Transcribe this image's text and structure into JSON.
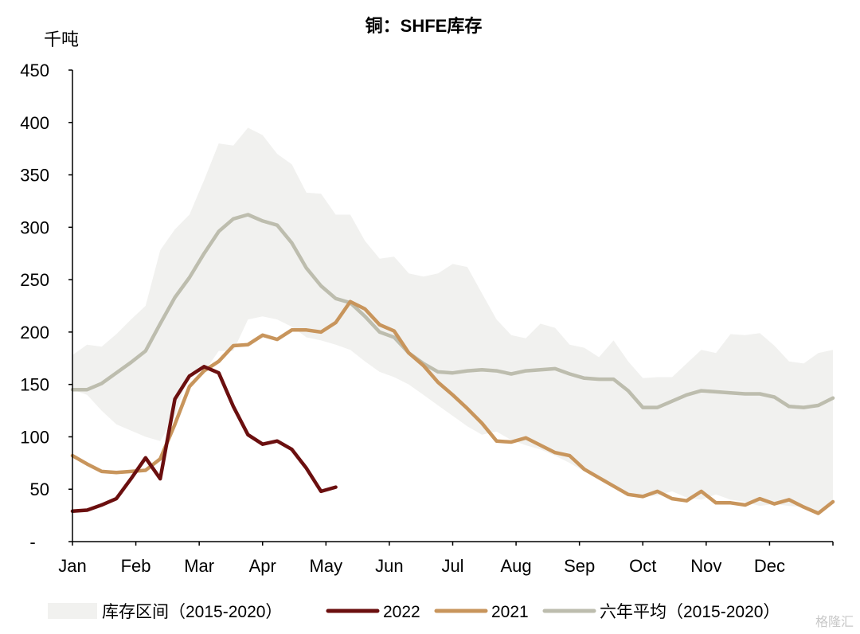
{
  "chart_data": {
    "type": "line",
    "title": "铜：SHFE库存",
    "ylabel": "千吨",
    "xlabel": "",
    "ylim": [
      0,
      450
    ],
    "yticks": [
      0,
      50,
      100,
      150,
      200,
      250,
      300,
      350,
      400,
      450
    ],
    "ytick_labels": [
      "-",
      "50",
      "100",
      "150",
      "200",
      "250",
      "300",
      "350",
      "400",
      "450"
    ],
    "xlim": [
      0,
      52
    ],
    "months": [
      "Jan",
      "Feb",
      "Mar",
      "Apr",
      "May",
      "Jun",
      "Jul",
      "Aug",
      "Sep",
      "Oct",
      "Nov",
      "Dec"
    ],
    "grid": false,
    "legend_position": "bottom",
    "band": {
      "name": "库存区间（2015-2020）",
      "color": "#f1f1ef",
      "x": [
        0,
        1,
        2,
        3,
        4,
        5,
        6,
        7,
        8,
        9,
        10,
        11,
        12,
        13,
        14,
        15,
        16,
        17,
        18,
        19,
        20,
        21,
        22,
        23,
        24,
        25,
        26,
        27,
        28,
        29,
        30,
        31,
        32,
        33,
        34,
        35,
        36,
        37,
        38,
        39,
        40,
        41,
        42,
        43,
        44,
        45,
        46,
        47,
        48,
        49,
        50,
        51,
        52
      ],
      "upper": [
        178,
        188,
        186,
        198,
        212,
        225,
        278,
        298,
        312,
        345,
        380,
        378,
        395,
        388,
        370,
        360,
        333,
        332,
        312,
        312,
        287,
        270,
        272,
        256,
        253,
        256,
        265,
        262,
        237,
        212,
        197,
        194,
        208,
        204,
        188,
        185,
        176,
        192,
        172,
        156,
        157,
        157,
        170,
        183,
        180,
        198,
        197,
        199,
        187,
        172,
        170,
        180,
        183
      ],
      "lower": [
        145,
        140,
        125,
        112,
        106,
        100,
        96,
        120,
        162,
        162,
        182,
        182,
        212,
        215,
        212,
        205,
        195,
        192,
        188,
        183,
        172,
        162,
        157,
        150,
        140,
        130,
        120,
        110,
        102,
        105,
        97,
        92,
        88,
        82,
        75,
        67,
        60,
        53,
        46,
        43,
        44,
        48,
        42,
        40,
        45,
        40,
        38,
        34,
        36,
        34,
        33,
        28,
        36
      ]
    },
    "series": [
      {
        "name": "2022",
        "color": "#6b0f0f",
        "x": [
          0,
          1,
          2,
          3,
          4,
          5,
          6,
          7,
          8,
          9,
          10,
          11,
          12,
          13,
          14,
          15,
          16,
          17,
          18
        ],
        "values": [
          29,
          30,
          35,
          41,
          60,
          80,
          60,
          136,
          158,
          167,
          161,
          129,
          102,
          93,
          96,
          88,
          70,
          48,
          52
        ]
      },
      {
        "name": "2021",
        "color": "#c8955c",
        "x": [
          0,
          1,
          2,
          3,
          4,
          5,
          6,
          7,
          8,
          9,
          10,
          11,
          12,
          13,
          14,
          15,
          16,
          17,
          18,
          19,
          20,
          21,
          22,
          23,
          24,
          25,
          26,
          27,
          28,
          29,
          30,
          31,
          32,
          33,
          34,
          35,
          36,
          37,
          38,
          39,
          40,
          41,
          42,
          43,
          44,
          45,
          46,
          47,
          48,
          49,
          50,
          51,
          52
        ],
        "values": [
          82,
          74,
          67,
          66,
          67,
          68,
          79,
          112,
          148,
          163,
          172,
          187,
          188,
          197,
          193,
          202,
          202,
          200,
          209,
          229,
          222,
          207,
          201,
          180,
          168,
          152,
          140,
          127,
          113,
          96,
          95,
          99,
          92,
          85,
          82,
          69,
          61,
          53,
          45,
          43,
          48,
          41,
          39,
          48,
          37,
          37,
          35,
          41,
          36,
          40,
          33,
          27,
          38
        ]
      },
      {
        "name": "六年平均（2015-2020）",
        "color": "#bdbdae",
        "x": [
          0,
          1,
          2,
          3,
          4,
          5,
          6,
          7,
          8,
          9,
          10,
          11,
          12,
          13,
          14,
          15,
          16,
          17,
          18,
          19,
          20,
          21,
          22,
          23,
          24,
          25,
          26,
          27,
          28,
          29,
          30,
          31,
          32,
          33,
          34,
          35,
          36,
          37,
          38,
          39,
          40,
          41,
          42,
          43,
          44,
          45,
          46,
          47,
          48,
          49,
          50,
          51,
          52
        ],
        "values": [
          145,
          145,
          151,
          161,
          171,
          182,
          208,
          233,
          252,
          275,
          296,
          308,
          312,
          306,
          302,
          285,
          261,
          244,
          232,
          228,
          215,
          200,
          195,
          180,
          170,
          162,
          161,
          163,
          164,
          163,
          160,
          163,
          164,
          165,
          160,
          156,
          155,
          155,
          144,
          128,
          128,
          134,
          140,
          144,
          143,
          142,
          141,
          141,
          138,
          129,
          128,
          130,
          137
        ]
      }
    ]
  },
  "watermark": "格隆汇"
}
